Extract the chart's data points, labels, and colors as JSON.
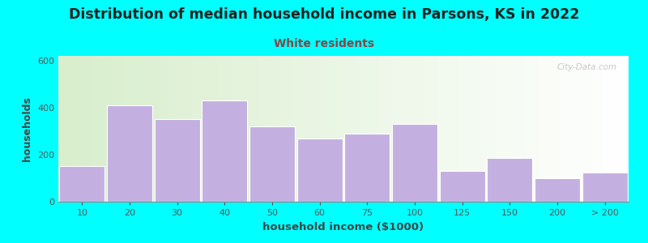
{
  "title": "Distribution of median household income in Parsons, KS in 2022",
  "subtitle": "White residents",
  "xlabel": "household income ($1000)",
  "ylabel": "households",
  "background_outer": "#00FFFF",
  "bar_color": "#c4b0e0",
  "bar_edge_color": "#ffffff",
  "title_fontsize": 12.5,
  "subtitle_fontsize": 10,
  "title_color": "#222222",
  "subtitle_color": "#8b4444",
  "ylabel_fontsize": 9,
  "xlabel_fontsize": 9.5,
  "bar_lefts": [
    0,
    1,
    2,
    3,
    4,
    5,
    6,
    7,
    8,
    9,
    10,
    11
  ],
  "bar_heights": [
    150,
    410,
    350,
    430,
    320,
    270,
    290,
    330,
    130,
    185,
    100,
    125
  ],
  "ylim": [
    0,
    620
  ],
  "yticks": [
    0,
    200,
    400,
    600
  ],
  "xtick_labels": [
    "10",
    "20",
    "30",
    "40",
    "50",
    "60",
    "75",
    "100",
    "125",
    "150",
    "200",
    "> 200"
  ],
  "watermark": "City-Data.com"
}
